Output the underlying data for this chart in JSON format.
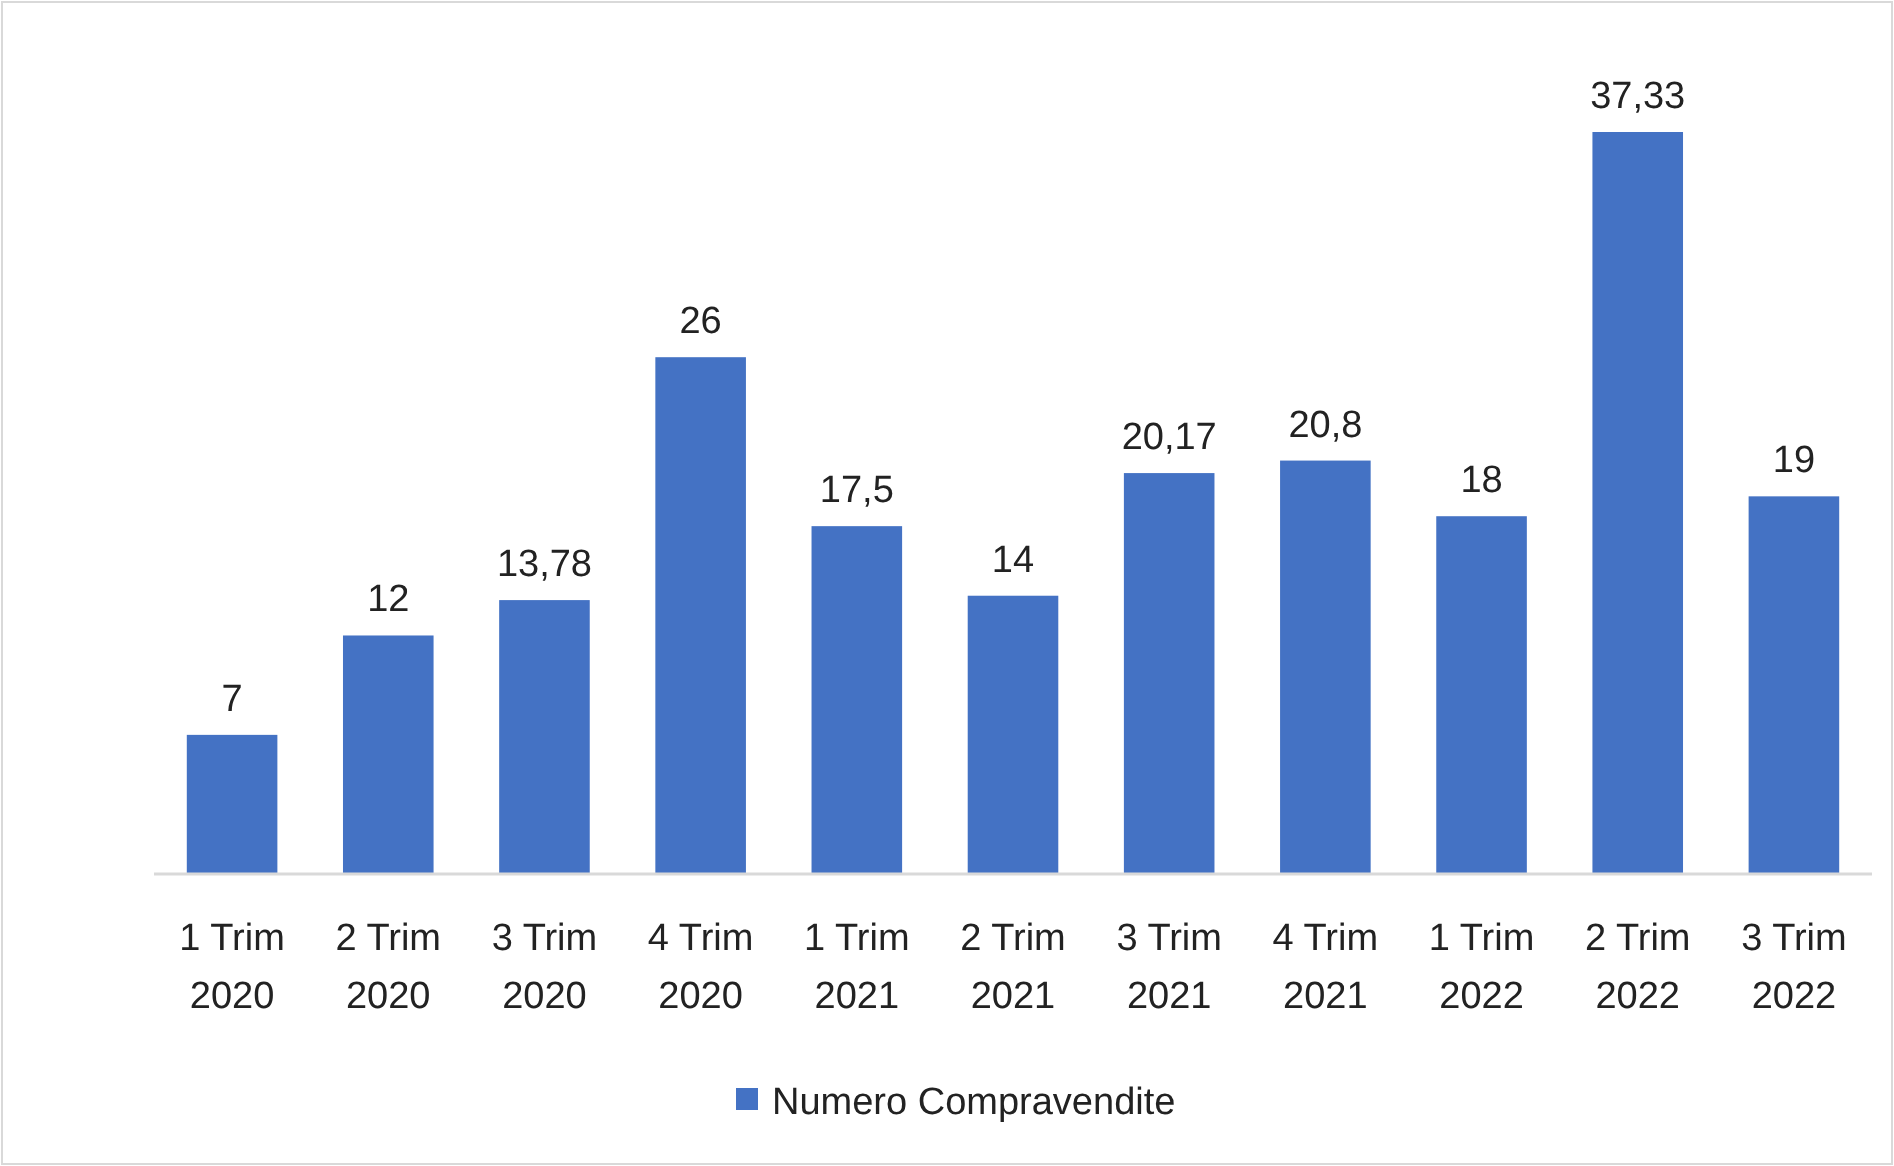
{
  "chart_data": {
    "type": "bar",
    "categories": [
      "1 Trim\n2020",
      "2 Trim\n2020",
      "3 Trim\n2020",
      "4 Trim\n2020",
      "1 Trim\n2021",
      "2 Trim\n2021",
      "3 Trim\n2021",
      "4 Trim\n2021",
      "1 Trim\n2022",
      "2 Trim\n2022",
      "3 Trim\n2022"
    ],
    "series": [
      {
        "name": "Numero Compravendite",
        "color": "#4472c4",
        "values": [
          7,
          12,
          13.78,
          26,
          17.5,
          14,
          20.17,
          20.8,
          18,
          37.33,
          19
        ],
        "value_labels": [
          "7",
          "12",
          "13,78",
          "26",
          "17,5",
          "14",
          "20,17",
          "20,8",
          "18",
          "37,33",
          "19"
        ]
      }
    ],
    "tick_labels": "x",
    "legend": "bottom"
  }
}
